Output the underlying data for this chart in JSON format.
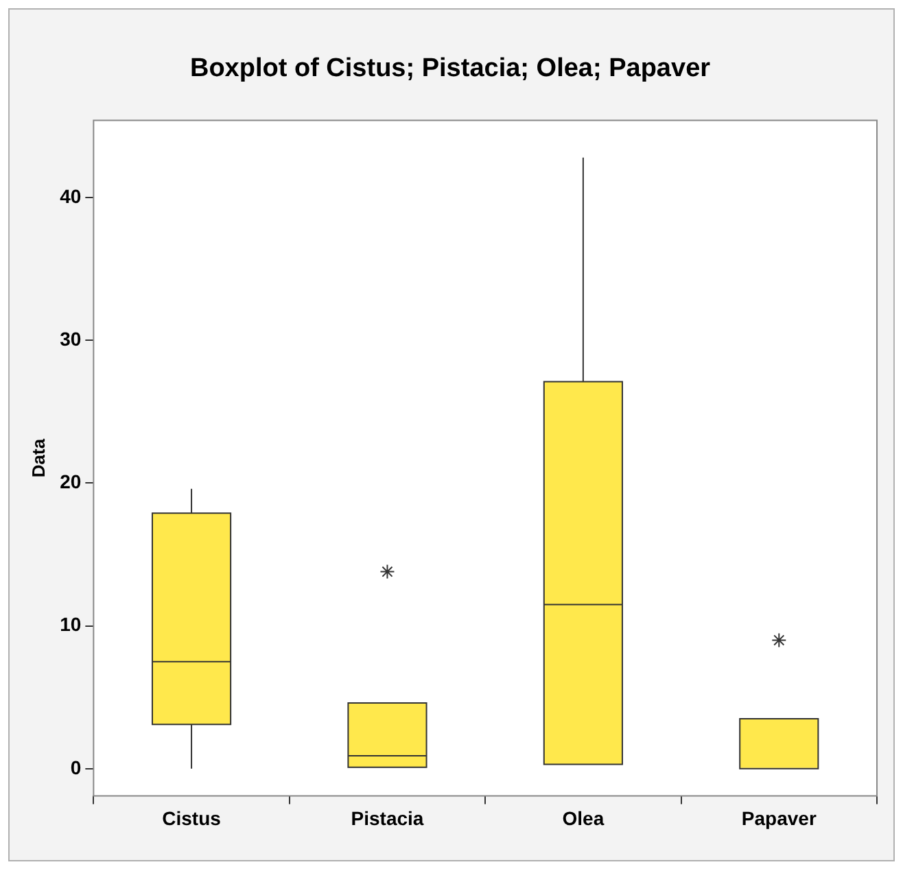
{
  "chart_data": {
    "type": "box",
    "title": "Boxplot of Cistus; Pistacia; Olea; Papaver",
    "ylabel": "Data",
    "categories": [
      "Cistus",
      "Pistacia",
      "Olea",
      "Papaver"
    ],
    "series": [
      {
        "color": "#ffe84c",
        "boxes": [
          {
            "low": 0,
            "q1": 3.1,
            "median": 7.5,
            "q3": 17.9,
            "high": 19.6
          },
          {
            "low": 0.1,
            "q1": 0.1,
            "median": 0.9,
            "q3": 4.6,
            "high": 4.6,
            "outliers": [
              13.8
            ]
          },
          {
            "low": 0.3,
            "q1": 0.3,
            "median": 11.5,
            "q3": 27.1,
            "high": 42.8
          },
          {
            "low": 0,
            "q1": 0,
            "median": 0,
            "q3": 3.5,
            "high": 3.5,
            "outliers": [
              9
            ]
          }
        ]
      }
    ],
    "ylim": [
      -1.9,
      45.4
    ],
    "yticks": [
      0,
      10,
      20,
      30,
      40
    ],
    "grid": false,
    "legend": false,
    "marker": "star"
  }
}
